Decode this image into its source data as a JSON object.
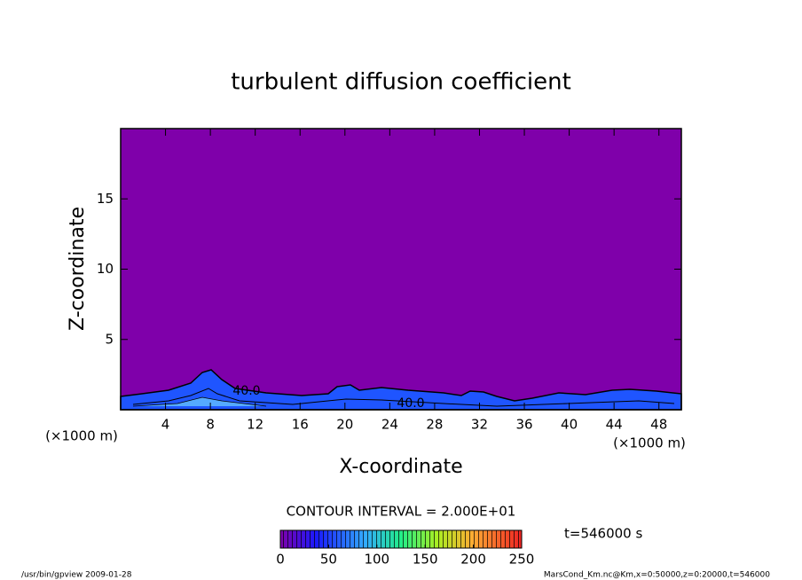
{
  "chart_data": {
    "type": "contour",
    "title": "turbulent diffusion coefficient",
    "xlabel": "X-coordinate",
    "ylabel": "Z-coordinate",
    "x_unit": "(×1000 m)",
    "y_unit": "(×1000 m)",
    "xlim": [
      0,
      50
    ],
    "ylim": [
      0,
      20
    ],
    "xticks": [
      4,
      8,
      12,
      16,
      20,
      24,
      28,
      32,
      36,
      40,
      44,
      48
    ],
    "yticks": [
      5,
      10,
      15
    ],
    "background_color": "#7f00aa",
    "annotations": [
      "40.0",
      "40.0"
    ],
    "contour_interval": "CONTOUR INTERVAL = 2.000E+01",
    "time": "t=546000 s",
    "colorbar": {
      "lim": [
        0,
        250
      ],
      "ticks": [
        0,
        50,
        100,
        150,
        200,
        250
      ]
    }
  },
  "footer": {
    "left": "/usr/bin/gpview  2009-01-28",
    "right": "MarsCond_Km.nc@Km,x=0:50000,z=0:20000,t=546000"
  }
}
